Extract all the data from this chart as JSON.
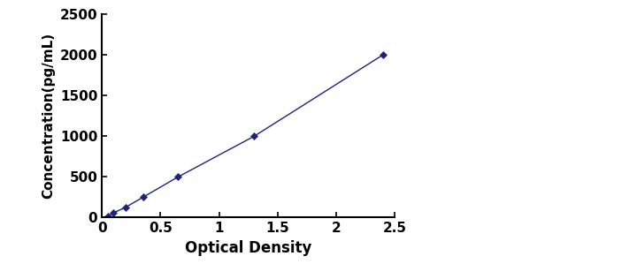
{
  "x": [
    0.05,
    0.1,
    0.2,
    0.35,
    0.65,
    1.3,
    2.4
  ],
  "y": [
    15,
    60,
    125,
    250,
    500,
    1000,
    2000
  ],
  "line_color": "#1a237e",
  "marker_style": "D",
  "marker_size": 4,
  "line_style": "-",
  "line_width": 1.0,
  "xlabel": "Optical Density",
  "ylabel": "Concentration(pg/mL)",
  "xlim": [
    0,
    2.5
  ],
  "ylim": [
    0,
    2500
  ],
  "xticks": [
    0,
    0.5,
    1,
    1.5,
    2,
    2.5
  ],
  "yticks": [
    0,
    500,
    1000,
    1500,
    2000,
    2500
  ],
  "background_color": "#ffffff",
  "xlabel_fontsize": 12,
  "ylabel_fontsize": 11,
  "tick_fontsize": 11
}
